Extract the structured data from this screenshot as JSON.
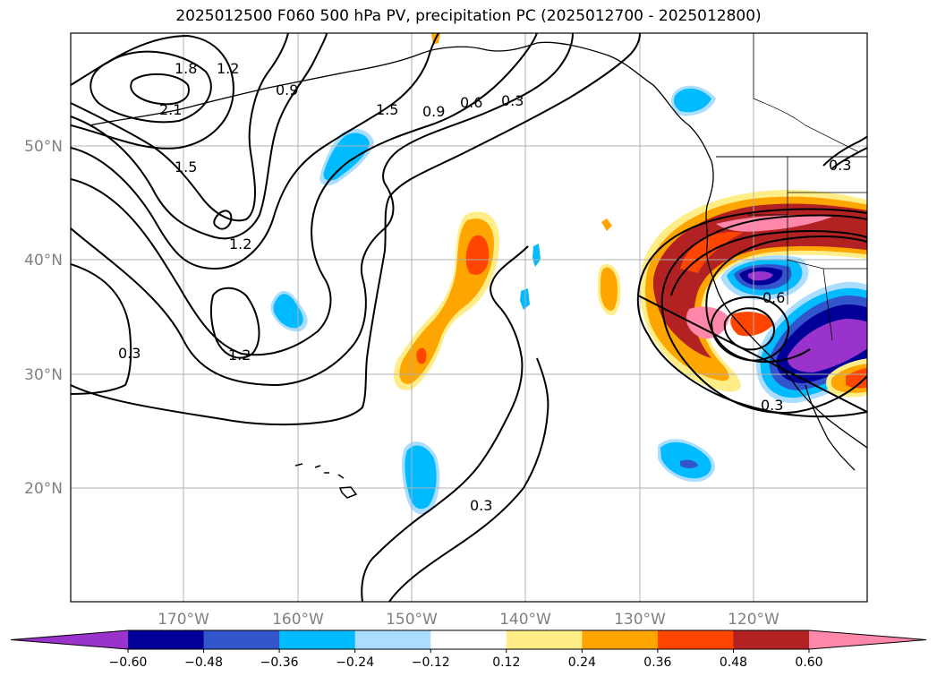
{
  "title": "2025012500 F060 500 hPa PV, precipitation PC (2025012700 - 2025012800)",
  "map": {
    "lon_labels": [
      "170°W",
      "160°W",
      "150°W",
      "140°W",
      "130°W",
      "120°W"
    ],
    "lat_labels": [
      "50°N",
      "40°N",
      "30°N",
      "20°N"
    ],
    "pv_contour_labels": [
      "1.8",
      "1.2",
      "0.9",
      "2.1",
      "1.5",
      "1.5",
      "0.9",
      "0.6",
      "0.3",
      "1.2",
      "1.2",
      "0.3",
      "0.3",
      "0.3",
      "0.6",
      "0.3"
    ]
  },
  "colorbar": {
    "ticks": [
      "−0.60",
      "−0.48",
      "−0.36",
      "−0.24",
      "−0.12",
      "0.12",
      "0.24",
      "0.36",
      "0.48",
      "0.60"
    ],
    "colors": [
      "#9933cc",
      "#000099",
      "#3355cc",
      "#00bbff",
      "#aaddff",
      "#ffffff",
      "#ffee88",
      "#ffa500",
      "#ff4500",
      "#b22222",
      "#ff88aa"
    ]
  },
  "colors": {
    "purple": "#9933cc",
    "navy": "#000099",
    "blue": "#3355cc",
    "cyan": "#00bbff",
    "lightblue": "#aaddff",
    "yellow": "#ffee88",
    "orange": "#ffa500",
    "redorange": "#ff4500",
    "firebrick": "#b22222",
    "pink": "#ff88aa"
  }
}
